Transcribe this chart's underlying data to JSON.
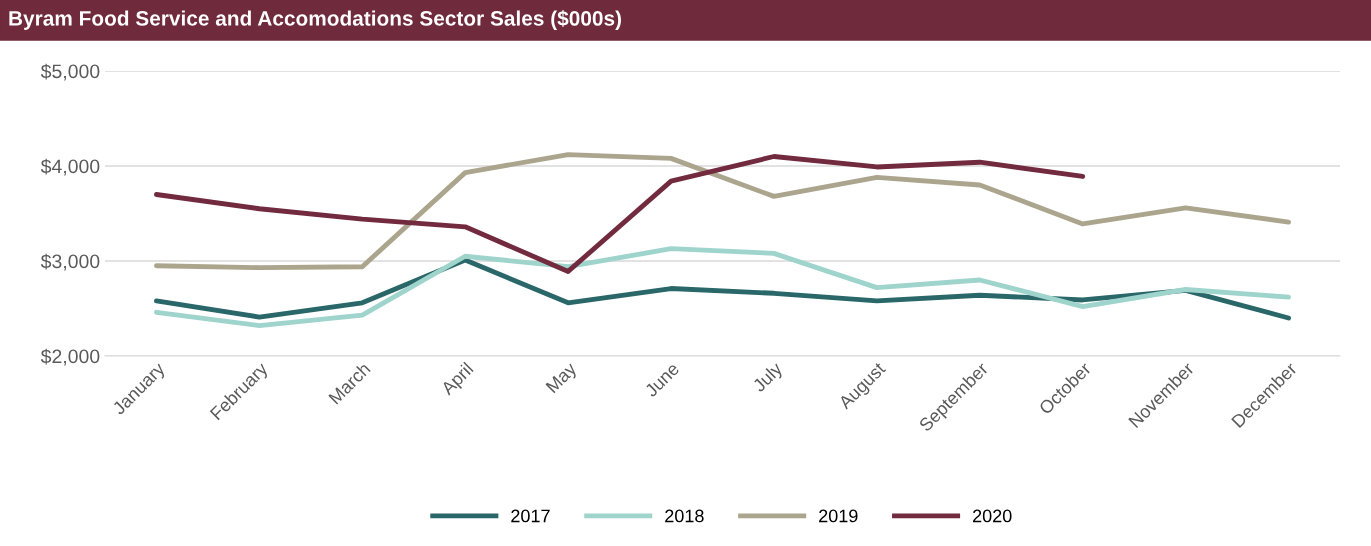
{
  "chart_data": {
    "type": "line",
    "title": "Byram Food Service and Accomodations Sector Sales ($000s)",
    "categories": [
      "January",
      "February",
      "March",
      "April",
      "May",
      "June",
      "July",
      "August",
      "September",
      "October",
      "November",
      "December"
    ],
    "series": [
      {
        "name": "2017",
        "color": "#2a6769",
        "values": [
          2580,
          2410,
          2560,
          3010,
          2560,
          2710,
          2660,
          2580,
          2640,
          2590,
          2690,
          2400
        ]
      },
      {
        "name": "2018",
        "color": "#9fd4cc",
        "values": [
          2460,
          2320,
          2430,
          3050,
          2940,
          3130,
          3080,
          2720,
          2800,
          2520,
          2700,
          2620
        ]
      },
      {
        "name": "2019",
        "color": "#aca58e",
        "values": [
          2950,
          2930,
          2940,
          3930,
          4120,
          4080,
          3680,
          3880,
          3800,
          3390,
          3560,
          3410
        ]
      },
      {
        "name": "2020",
        "color": "#722a3e",
        "values": [
          3700,
          3550,
          3440,
          3360,
          2890,
          3840,
          4100,
          3990,
          4040,
          3890,
          null,
          null
        ]
      }
    ],
    "ylim": [
      2000,
      5000
    ],
    "yticks": [
      {
        "value": 2000,
        "label": "$2,000"
      },
      {
        "value": 3000,
        "label": "$3,000"
      },
      {
        "value": 4000,
        "label": "$4,000"
      },
      {
        "value": 5000,
        "label": "$5,000"
      }
    ],
    "grid": "y",
    "legend": "bottom",
    "marker": "none",
    "line_style": "solid"
  }
}
